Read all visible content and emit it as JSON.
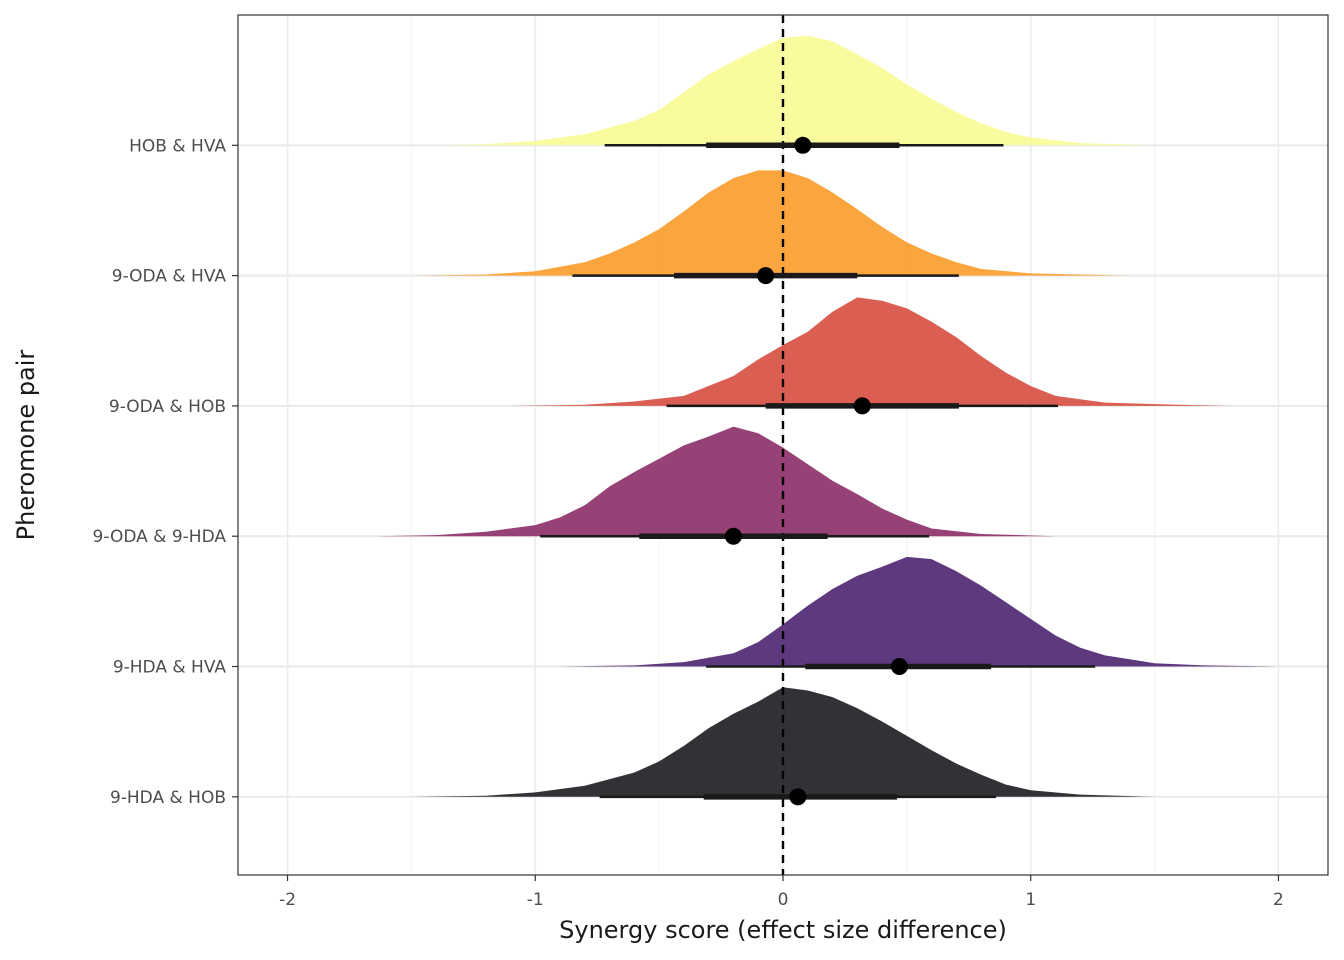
{
  "chart_data": {
    "type": "ridgeline",
    "xlabel": "Synergy score (effect size difference)",
    "ylabel": "Pheromone pair",
    "xlim": [
      -2.2,
      2.2
    ],
    "x_ticks": [
      -2,
      -1,
      0,
      1,
      2
    ],
    "x_tick_labels": [
      "-2",
      "-1",
      "0",
      "1",
      "2"
    ],
    "reference_line": {
      "x": 0,
      "style": "dashed"
    },
    "grid": true,
    "legend": "none",
    "series": [
      {
        "name": "9-HDA & HOB",
        "color": "#1c1b20",
        "point": 0.06,
        "inner": [
          -0.32,
          0.46
        ],
        "outer": [
          -0.74,
          0.86
        ],
        "density": [
          [
            -1.5,
            0
          ],
          [
            -1.2,
            0.01
          ],
          [
            -1.0,
            0.04
          ],
          [
            -0.8,
            0.1
          ],
          [
            -0.6,
            0.22
          ],
          [
            -0.5,
            0.32
          ],
          [
            -0.4,
            0.46
          ],
          [
            -0.3,
            0.62
          ],
          [
            -0.2,
            0.75
          ],
          [
            -0.1,
            0.86
          ],
          [
            0.0,
            0.99
          ],
          [
            0.1,
            0.96
          ],
          [
            0.2,
            0.9
          ],
          [
            0.3,
            0.8
          ],
          [
            0.4,
            0.68
          ],
          [
            0.5,
            0.55
          ],
          [
            0.6,
            0.42
          ],
          [
            0.7,
            0.3
          ],
          [
            0.8,
            0.2
          ],
          [
            0.9,
            0.11
          ],
          [
            1.0,
            0.06
          ],
          [
            1.2,
            0.02
          ],
          [
            1.5,
            0
          ]
        ]
      },
      {
        "name": "9-HDA & HVA",
        "color": "#4c2370",
        "point": 0.47,
        "inner": [
          0.09,
          0.84
        ],
        "outer": [
          -0.31,
          1.26
        ],
        "density": [
          [
            -0.9,
            0
          ],
          [
            -0.6,
            0.01
          ],
          [
            -0.4,
            0.04
          ],
          [
            -0.2,
            0.12
          ],
          [
            -0.1,
            0.22
          ],
          [
            0.0,
            0.38
          ],
          [
            0.1,
            0.55
          ],
          [
            0.2,
            0.7
          ],
          [
            0.3,
            0.82
          ],
          [
            0.4,
            0.9
          ],
          [
            0.5,
            0.99
          ],
          [
            0.6,
            0.97
          ],
          [
            0.7,
            0.86
          ],
          [
            0.8,
            0.73
          ],
          [
            0.9,
            0.58
          ],
          [
            1.0,
            0.43
          ],
          [
            1.1,
            0.28
          ],
          [
            1.2,
            0.17
          ],
          [
            1.3,
            0.1
          ],
          [
            1.5,
            0.03
          ],
          [
            1.7,
            0.01
          ],
          [
            2.0,
            0
          ]
        ]
      },
      {
        "name": "9-ODA & 9-HDA",
        "color": "#8c2e68",
        "point": -0.2,
        "inner": [
          -0.58,
          0.18
        ],
        "outer": [
          -0.98,
          0.59
        ],
        "density": [
          [
            -1.65,
            0
          ],
          [
            -1.4,
            0.01
          ],
          [
            -1.2,
            0.04
          ],
          [
            -1.0,
            0.1
          ],
          [
            -0.9,
            0.17
          ],
          [
            -0.8,
            0.28
          ],
          [
            -0.7,
            0.45
          ],
          [
            -0.6,
            0.58
          ],
          [
            -0.5,
            0.7
          ],
          [
            -0.4,
            0.82
          ],
          [
            -0.3,
            0.9
          ],
          [
            -0.2,
            0.99
          ],
          [
            -0.1,
            0.93
          ],
          [
            0.0,
            0.8
          ],
          [
            0.1,
            0.65
          ],
          [
            0.2,
            0.5
          ],
          [
            0.3,
            0.38
          ],
          [
            0.4,
            0.25
          ],
          [
            0.5,
            0.15
          ],
          [
            0.6,
            0.07
          ],
          [
            0.8,
            0.02
          ],
          [
            1.1,
            0
          ]
        ]
      },
      {
        "name": "9-ODA & HOB",
        "color": "#d64c3f",
        "point": 0.32,
        "inner": [
          -0.07,
          0.71
        ],
        "outer": [
          -0.47,
          1.11
        ],
        "density": [
          [
            -1.1,
            0
          ],
          [
            -0.8,
            0.01
          ],
          [
            -0.6,
            0.04
          ],
          [
            -0.4,
            0.09
          ],
          [
            -0.2,
            0.27
          ],
          [
            -0.1,
            0.42
          ],
          [
            0.0,
            0.55
          ],
          [
            0.1,
            0.67
          ],
          [
            0.2,
            0.85
          ],
          [
            0.3,
            0.98
          ],
          [
            0.4,
            0.95
          ],
          [
            0.5,
            0.88
          ],
          [
            0.6,
            0.76
          ],
          [
            0.7,
            0.62
          ],
          [
            0.8,
            0.45
          ],
          [
            0.9,
            0.3
          ],
          [
            1.0,
            0.18
          ],
          [
            1.1,
            0.09
          ],
          [
            1.3,
            0.03
          ],
          [
            1.6,
            0.01
          ],
          [
            1.8,
            0
          ]
        ]
      },
      {
        "name": "9-ODA & HVA",
        "color": "#f99b29",
        "point": -0.07,
        "inner": [
          -0.44,
          0.3
        ],
        "outer": [
          -0.85,
          0.71
        ],
        "density": [
          [
            -1.5,
            0
          ],
          [
            -1.2,
            0.01
          ],
          [
            -1.0,
            0.04
          ],
          [
            -0.8,
            0.12
          ],
          [
            -0.7,
            0.2
          ],
          [
            -0.6,
            0.3
          ],
          [
            -0.5,
            0.42
          ],
          [
            -0.4,
            0.58
          ],
          [
            -0.3,
            0.75
          ],
          [
            -0.2,
            0.88
          ],
          [
            -0.1,
            0.95
          ],
          [
            0.0,
            0.95
          ],
          [
            0.1,
            0.88
          ],
          [
            0.2,
            0.75
          ],
          [
            0.3,
            0.6
          ],
          [
            0.4,
            0.44
          ],
          [
            0.5,
            0.3
          ],
          [
            0.6,
            0.2
          ],
          [
            0.7,
            0.12
          ],
          [
            0.8,
            0.06
          ],
          [
            1.0,
            0.02
          ],
          [
            1.4,
            0
          ]
        ]
      },
      {
        "name": "HOB & HVA",
        "color": "#f9fb95",
        "point": 0.08,
        "inner": [
          -0.31,
          0.47
        ],
        "outer": [
          -0.72,
          0.89
        ],
        "density": [
          [
            -1.4,
            0
          ],
          [
            -1.2,
            0.01
          ],
          [
            -1.0,
            0.04
          ],
          [
            -0.8,
            0.1
          ],
          [
            -0.6,
            0.22
          ],
          [
            -0.5,
            0.32
          ],
          [
            -0.4,
            0.48
          ],
          [
            -0.3,
            0.64
          ],
          [
            -0.2,
            0.76
          ],
          [
            -0.1,
            0.87
          ],
          [
            0.0,
            0.97
          ],
          [
            0.1,
            0.99
          ],
          [
            0.2,
            0.94
          ],
          [
            0.3,
            0.82
          ],
          [
            0.4,
            0.7
          ],
          [
            0.5,
            0.55
          ],
          [
            0.6,
            0.42
          ],
          [
            0.7,
            0.3
          ],
          [
            0.8,
            0.2
          ],
          [
            0.9,
            0.12
          ],
          [
            1.0,
            0.07
          ],
          [
            1.2,
            0.02
          ],
          [
            1.5,
            0
          ]
        ]
      }
    ]
  }
}
